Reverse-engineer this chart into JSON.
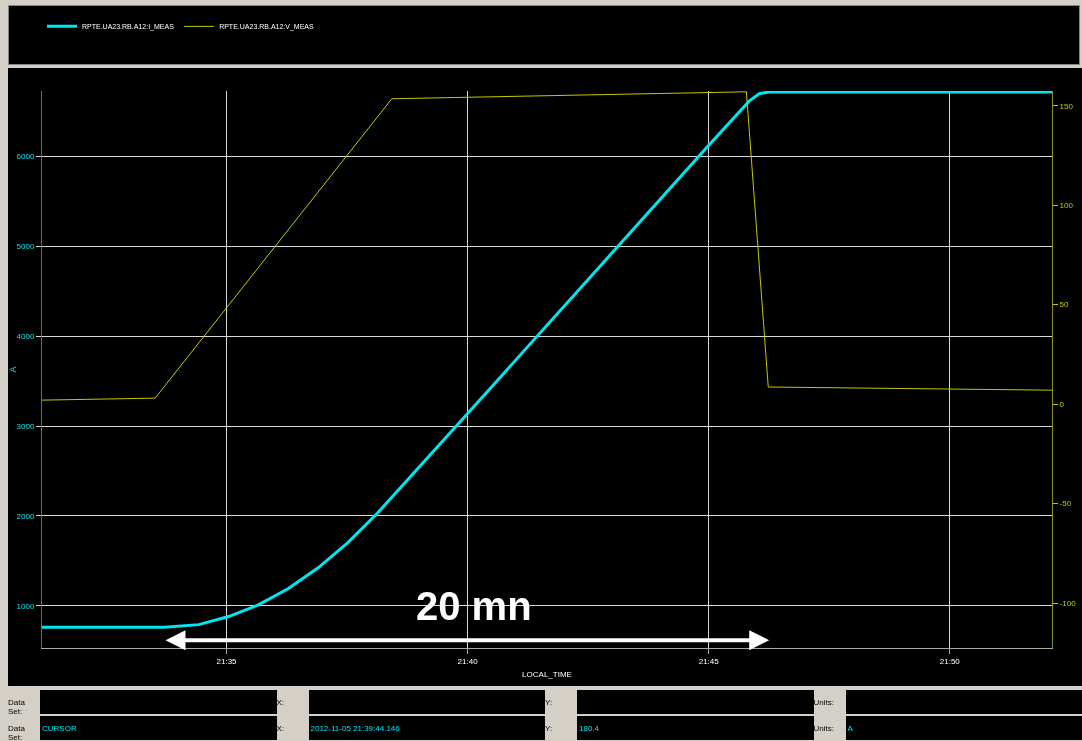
{
  "chart_data": {
    "type": "line",
    "xlabel": "LOCAL_TIME",
    "ylabel": "A",
    "series": [
      {
        "name": "RPTE.UA23.RB.A12:I_MEAS",
        "color": "#00e5ee",
        "x": [
          21.51955,
          21.56173,
          21.57373,
          21.58402,
          21.59431,
          21.60459,
          21.61488,
          21.62517,
          21.63546,
          21.66667,
          21.74932,
          21.76406,
          21.76749,
          21.77091,
          21.86866
        ],
        "values": [
          760,
          760,
          790,
          880,
          1010,
          1190,
          1420,
          1700,
          2030,
          3140,
          6100,
          6620,
          6700,
          6720,
          6720
        ]
      },
      {
        "name": "RPTE.UA23.RB.A12:V_MEAS",
        "color": "#c8c800",
        "axis": "y2",
        "x": [
          21.51955,
          21.55865,
          21.64047,
          21.76303,
          21.77058,
          21.86866
        ],
        "values": [
          2,
          3,
          153.5,
          157,
          8.6,
          7
        ]
      }
    ],
    "xlim": [
      21.51955,
      21.86866
    ],
    "xticks": [
      {
        "value": 21.58333,
        "label": "21:35"
      },
      {
        "value": 21.66667,
        "label": "21:40"
      },
      {
        "value": 21.75,
        "label": "21:45"
      },
      {
        "value": 21.83333,
        "label": "21:50"
      }
    ],
    "ylim": [
      530,
      6730
    ],
    "yticks": [
      1000,
      2000,
      3000,
      4000,
      5000,
      6000
    ],
    "y2lim": [
      -122.6,
      157.4
    ],
    "y2ticks": [
      -100,
      -50,
      0,
      50,
      100,
      150
    ],
    "grid": true,
    "legend": "top left",
    "marker": "none",
    "line_style": "solid",
    "annotations": [
      "20 mn",
      "Data Set:",
      "X:",
      "Y:",
      "Units:",
      "Data Set:",
      "CURSOR",
      "X:",
      "2012-11-05 21:39:44.146",
      "Y:",
      "180.4",
      "Units:",
      "A"
    ]
  }
}
